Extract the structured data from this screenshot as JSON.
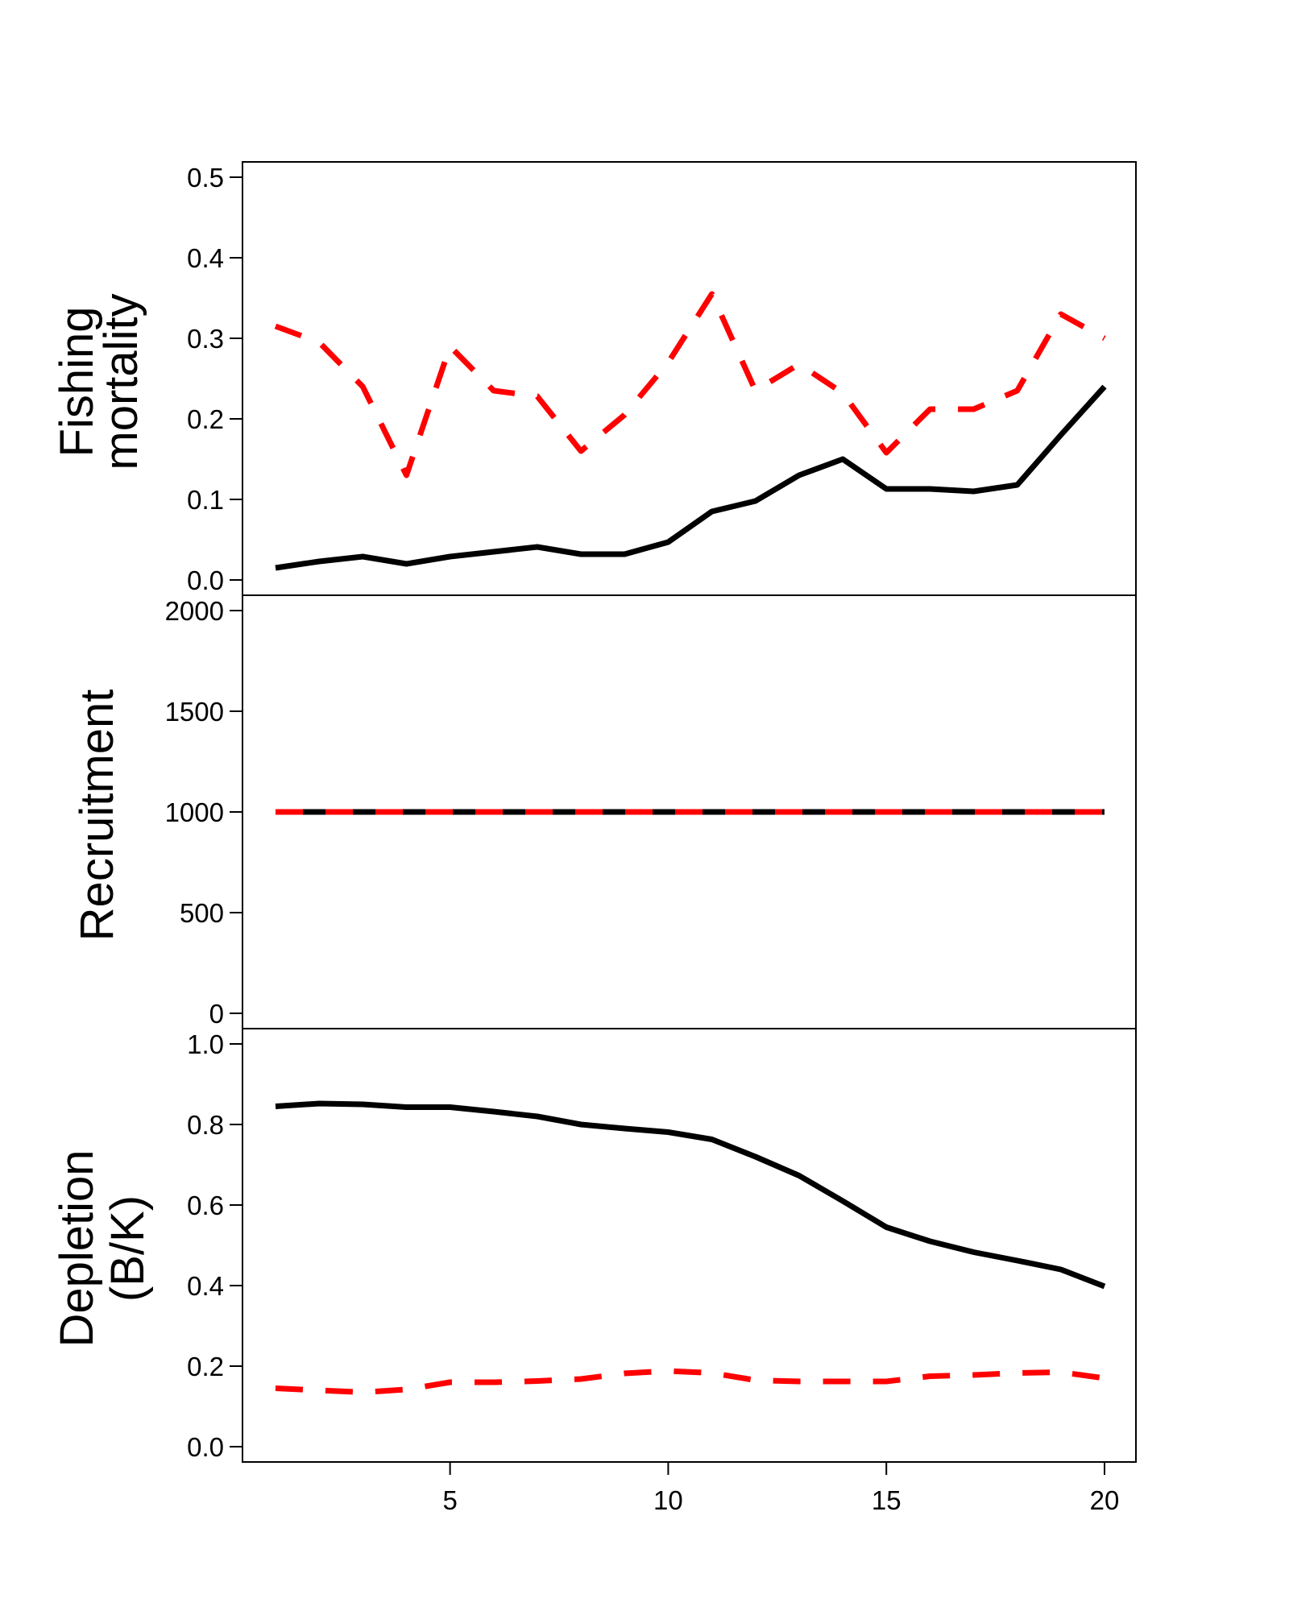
{
  "chart_data": [
    {
      "type": "line",
      "ylabel": [
        "Fishing",
        "mortality"
      ],
      "ylim": [
        0,
        0.5
      ],
      "yticks": [
        0.0,
        0.1,
        0.2,
        0.3,
        0.4,
        0.5
      ],
      "ytick_labels": [
        "0.0",
        "0.1",
        "0.2",
        "0.3",
        "0.4",
        "0.5"
      ],
      "x": [
        1,
        2,
        3,
        4,
        5,
        6,
        7,
        8,
        9,
        10,
        11,
        12,
        13,
        14,
        15,
        16,
        17,
        18,
        19,
        20
      ],
      "series": [
        {
          "style": "solid",
          "color": "#000000",
          "values": [
            0.015,
            0.023,
            0.029,
            0.02,
            0.029,
            0.035,
            0.041,
            0.032,
            0.032,
            0.047,
            0.085,
            0.098,
            0.13,
            0.15,
            0.113,
            0.113,
            0.11,
            0.118,
            0.18,
            0.24
          ]
        },
        {
          "style": "dashed",
          "color": "#ff0000",
          "values": [
            0.315,
            0.295,
            0.24,
            0.13,
            0.29,
            0.235,
            0.228,
            0.16,
            0.205,
            0.27,
            0.355,
            0.235,
            0.268,
            0.232,
            0.158,
            0.212,
            0.212,
            0.235,
            0.33,
            0.3
          ]
        }
      ]
    },
    {
      "type": "line",
      "ylabel": [
        "Recruitment"
      ],
      "ylim": [
        0,
        2000
      ],
      "yticks": [
        0,
        500,
        1000,
        1500,
        2000
      ],
      "ytick_labels": [
        "0",
        "500",
        "1000",
        "1500",
        "2000"
      ],
      "x": [
        1,
        2,
        3,
        4,
        5,
        6,
        7,
        8,
        9,
        10,
        11,
        12,
        13,
        14,
        15,
        16,
        17,
        18,
        19,
        20
      ],
      "series": [
        {
          "style": "solid",
          "color": "#000000",
          "values": [
            1000,
            1000,
            1000,
            1000,
            1000,
            1000,
            1000,
            1000,
            1000,
            1000,
            1000,
            1000,
            1000,
            1000,
            1000,
            1000,
            1000,
            1000,
            1000,
            1000
          ]
        },
        {
          "style": "dashed",
          "color": "#ff0000",
          "values": [
            1000,
            1000,
            1000,
            1000,
            1000,
            1000,
            1000,
            1000,
            1000,
            1000,
            1000,
            1000,
            1000,
            1000,
            1000,
            1000,
            1000,
            1000,
            1000,
            1000
          ]
        }
      ]
    },
    {
      "type": "line",
      "ylabel": [
        "Depletion",
        "(B/K)"
      ],
      "ylim": [
        0,
        1.0
      ],
      "yticks": [
        0.0,
        0.2,
        0.4,
        0.6,
        0.8,
        1.0
      ],
      "ytick_labels": [
        "0.0",
        "0.2",
        "0.4",
        "0.6",
        "0.8",
        "1.0"
      ],
      "xticks": [
        5,
        10,
        15,
        20
      ],
      "xtick_labels": [
        "5",
        "10",
        "15",
        "20"
      ],
      "x": [
        1,
        2,
        3,
        4,
        5,
        6,
        7,
        8,
        9,
        10,
        11,
        12,
        13,
        14,
        15,
        16,
        17,
        18,
        19,
        20
      ],
      "series": [
        {
          "style": "solid",
          "color": "#000000",
          "values": [
            0.845,
            0.852,
            0.85,
            0.843,
            0.843,
            0.832,
            0.82,
            0.8,
            0.79,
            0.781,
            0.763,
            0.72,
            0.673,
            0.61,
            0.545,
            0.51,
            0.483,
            0.462,
            0.44,
            0.398
          ]
        },
        {
          "style": "dashed",
          "color": "#ff0000",
          "values": [
            0.145,
            0.14,
            0.135,
            0.142,
            0.16,
            0.16,
            0.163,
            0.168,
            0.182,
            0.188,
            0.183,
            0.165,
            0.162,
            0.162,
            0.162,
            0.175,
            0.178,
            0.183,
            0.185,
            0.17
          ]
        }
      ]
    }
  ]
}
